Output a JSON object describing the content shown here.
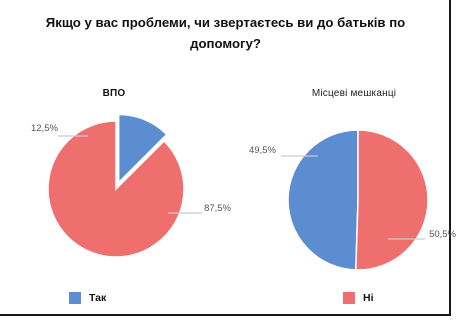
{
  "title_line1": "Якщо у вас проблеми, чи звертаєтесь ви до батьків по",
  "title_line2": "допомогу?",
  "colors": {
    "yes": "#5b8dd0",
    "no": "#ef6e6e",
    "leader": "#c9ccd4",
    "label": "#555555"
  },
  "legend": [
    {
      "label": "Так",
      "color": "#5b8dd0"
    },
    {
      "label": "Ні",
      "color": "#ef6e6e"
    }
  ],
  "chart_data": [
    {
      "type": "pie",
      "title": "ВПО",
      "categories": [
        "Так",
        "Ні"
      ],
      "values": [
        12.5,
        87.5
      ],
      "labels": [
        "12,5%",
        "87,5%"
      ],
      "exploded": "Так"
    },
    {
      "type": "pie",
      "title": "Місцеві мешканці",
      "categories": [
        "Так",
        "Ні"
      ],
      "values": [
        49.5,
        50.5
      ],
      "labels": [
        "49,5%",
        "50,5%"
      ]
    }
  ]
}
